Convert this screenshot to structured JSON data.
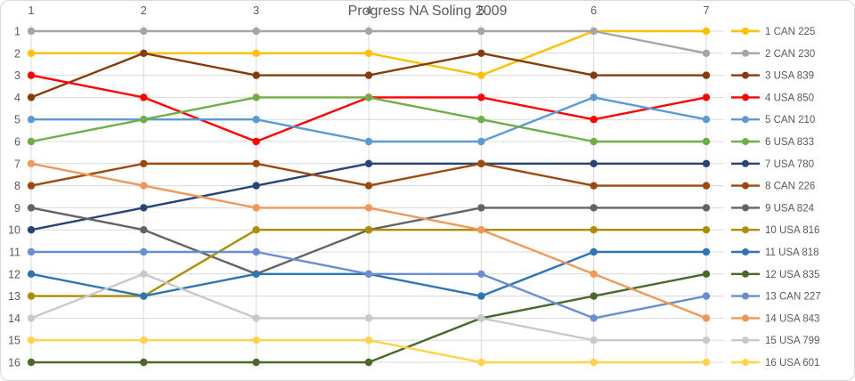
{
  "chart_data": {
    "type": "line",
    "title": "Progress NA Soling 2009",
    "x_tick_labels": [
      "1",
      "2",
      "3",
      "4",
      "5",
      "6",
      "7"
    ],
    "y_tick_labels": [
      "1",
      "2",
      "3",
      "4",
      "5",
      "6",
      "7",
      "8",
      "9",
      "10",
      "11",
      "12",
      "13",
      "14",
      "15",
      "16"
    ],
    "y_axis": {
      "min": 1,
      "max": 16,
      "inverted": true,
      "meaning": "standing position"
    },
    "x_axis": {
      "labels_position": "top",
      "meaning": "race number"
    },
    "grid": true,
    "legend_position": "right",
    "series": [
      {
        "name": "1 CAN 225",
        "color": "#FFC000",
        "values": [
          2,
          2,
          2,
          2,
          3,
          1,
          1
        ]
      },
      {
        "name": "2 CAN 230",
        "color": "#A5A5A5",
        "values": [
          1,
          1,
          1,
          1,
          1,
          1,
          2
        ]
      },
      {
        "name": "3 USA 839",
        "color": "#843C0C",
        "values": [
          4,
          2,
          3,
          3,
          2,
          3,
          3
        ]
      },
      {
        "name": "4 USA 850",
        "color": "#FF0000",
        "values": [
          3,
          4,
          6,
          4,
          4,
          5,
          4
        ]
      },
      {
        "name": "5 CAN 210",
        "color": "#5B9BD5",
        "values": [
          5,
          5,
          5,
          6,
          6,
          4,
          5
        ]
      },
      {
        "name": "6 USA 833",
        "color": "#70AD47",
        "values": [
          6,
          5,
          4,
          4,
          5,
          6,
          6
        ]
      },
      {
        "name": "7 USA 780",
        "color": "#264478",
        "values": [
          10,
          9,
          8,
          7,
          7,
          7,
          7
        ]
      },
      {
        "name": "8 CAN 226",
        "color": "#9E480E",
        "values": [
          8,
          7,
          7,
          8,
          7,
          8,
          8
        ]
      },
      {
        "name": "9 USA 824",
        "color": "#636363",
        "values": [
          9,
          10,
          12,
          10,
          9,
          9,
          9
        ]
      },
      {
        "name": "10 USA 816",
        "color": "#AE8C00",
        "values": [
          13,
          13,
          10,
          10,
          10,
          10,
          10
        ]
      },
      {
        "name": "11 USA 818",
        "color": "#2E75B6",
        "values": [
          12,
          13,
          12,
          12,
          13,
          11,
          11
        ]
      },
      {
        "name": "12 USA 835",
        "color": "#4A682C",
        "values": [
          16,
          16,
          16,
          16,
          14,
          13,
          12
        ]
      },
      {
        "name": "13 CAN 227",
        "color": "#698ED0",
        "values": [
          11,
          11,
          11,
          12,
          12,
          14,
          13
        ]
      },
      {
        "name": "14 USA 843",
        "color": "#F0975A",
        "values": [
          7,
          8,
          9,
          9,
          10,
          12,
          14
        ]
      },
      {
        "name": "15 USA 799",
        "color": "#C9C9C9",
        "values": [
          14,
          12,
          14,
          14,
          14,
          15,
          15
        ]
      },
      {
        "name": "16 USA 601",
        "color": "#FFD34D",
        "values": [
          15,
          15,
          15,
          15,
          16,
          16,
          16
        ]
      }
    ]
  },
  "colors": {
    "grid": "#D9D9D9",
    "tick_text": "#595959",
    "title_text": "#595959",
    "background": "#FFFFFF",
    "border": "#D9D9D9"
  }
}
